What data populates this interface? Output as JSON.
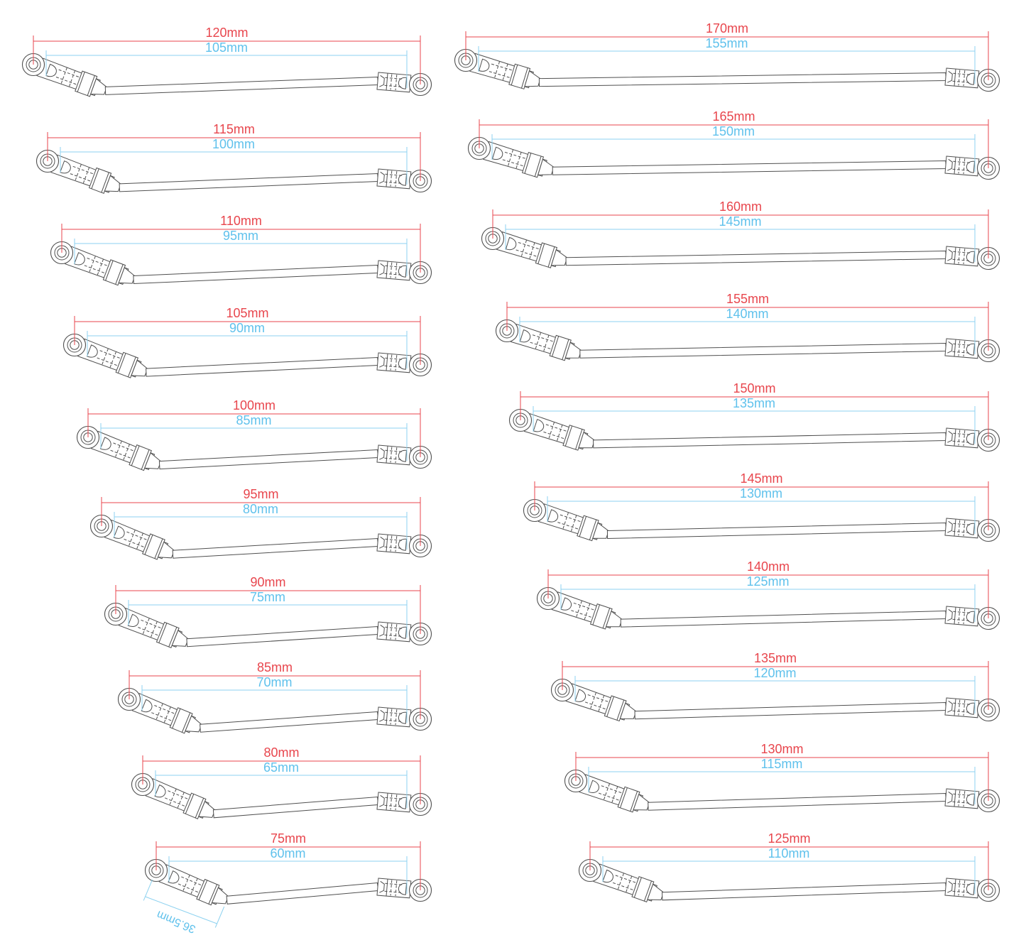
{
  "figure": {
    "description": "Linkage rod size chart: twenty steering link rods drawn side-view, each annotated with an overall length (red) and an inner hole-to-hole length (blue).",
    "colors": {
      "outer_dimension": "#e8464d",
      "inner_dimension": "#5fc1ec",
      "outline": "#4f4f4f",
      "background": "#ffffff"
    },
    "columns": [
      {
        "name": "left-column",
        "rods": [
          {
            "outer_label": "120mm",
            "inner_label": "105mm",
            "outer_mm": 120,
            "inner_mm": 105
          },
          {
            "outer_label": "115mm",
            "inner_label": "100mm",
            "outer_mm": 115,
            "inner_mm": 100
          },
          {
            "outer_label": "110mm",
            "inner_label": "95mm",
            "outer_mm": 110,
            "inner_mm": 95
          },
          {
            "outer_label": "105mm",
            "inner_label": "90mm",
            "outer_mm": 105,
            "inner_mm": 90
          },
          {
            "outer_label": "100mm",
            "inner_label": "85mm",
            "outer_mm": 100,
            "inner_mm": 85
          },
          {
            "outer_label": "95mm",
            "inner_label": "80mm",
            "outer_mm": 95,
            "inner_mm": 80
          },
          {
            "outer_label": "90mm",
            "inner_label": "75mm",
            "outer_mm": 90,
            "inner_mm": 75
          },
          {
            "outer_label": "85mm",
            "inner_label": "70mm",
            "outer_mm": 85,
            "inner_mm": 70
          },
          {
            "outer_label": "80mm",
            "inner_label": "65mm",
            "outer_mm": 80,
            "inner_mm": 65
          },
          {
            "outer_label": "75mm",
            "inner_label": "60mm",
            "outer_mm": 75,
            "inner_mm": 60,
            "link_label": "36.5mm",
            "link_mm": 36.5
          }
        ]
      },
      {
        "name": "right-column",
        "rods": [
          {
            "outer_label": "170mm",
            "inner_label": "155mm",
            "outer_mm": 170,
            "inner_mm": 155
          },
          {
            "outer_label": "165mm",
            "inner_label": "150mm",
            "outer_mm": 165,
            "inner_mm": 150
          },
          {
            "outer_label": "160mm",
            "inner_label": "145mm",
            "outer_mm": 160,
            "inner_mm": 145
          },
          {
            "outer_label": "155mm",
            "inner_label": "140mm",
            "outer_mm": 155,
            "inner_mm": 140
          },
          {
            "outer_label": "150mm",
            "inner_label": "135mm",
            "outer_mm": 150,
            "inner_mm": 135
          },
          {
            "outer_label": "145mm",
            "inner_label": "130mm",
            "outer_mm": 145,
            "inner_mm": 130
          },
          {
            "outer_label": "140mm",
            "inner_label": "125mm",
            "outer_mm": 140,
            "inner_mm": 125
          },
          {
            "outer_label": "135mm",
            "inner_label": "120mm",
            "outer_mm": 135,
            "inner_mm": 120
          },
          {
            "outer_label": "130mm",
            "inner_label": "115mm",
            "outer_mm": 130,
            "inner_mm": 115
          },
          {
            "outer_label": "125mm",
            "inner_label": "110mm",
            "outer_mm": 125,
            "inner_mm": 110
          }
        ]
      }
    ]
  }
}
